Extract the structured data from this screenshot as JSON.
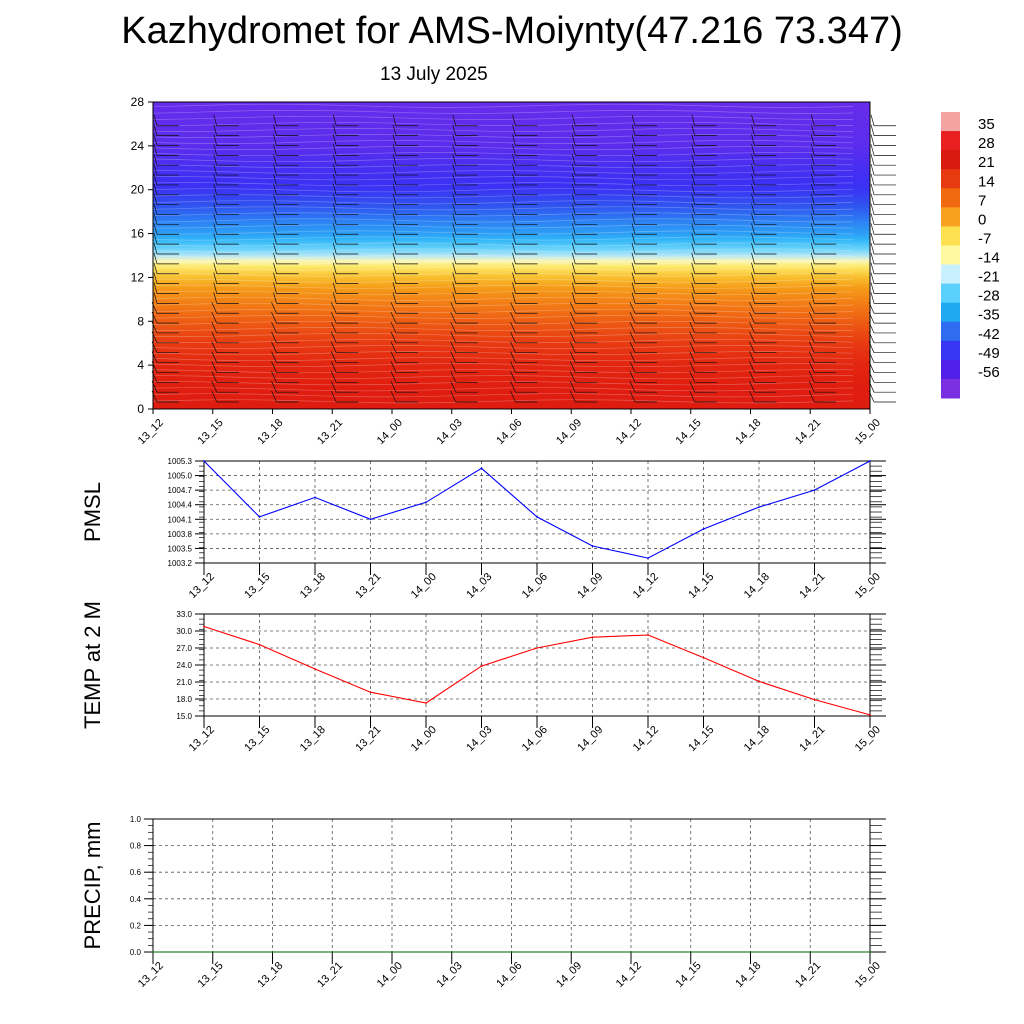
{
  "header": {
    "title": "Kazhydromet for AMS-Moiynty(47.216 73.347)",
    "date": "13 July 2025"
  },
  "colorbar": {
    "labels": [
      "35",
      "28",
      "21",
      "14",
      "7",
      "0",
      "-7",
      "-14",
      "-21",
      "-28",
      "-35",
      "-42",
      "-49",
      "-56"
    ],
    "colors": [
      "#f4a3a3",
      "#e82020",
      "#d81a10",
      "#e83a10",
      "#f06a10",
      "#f8a020",
      "#fce050",
      "#fffaa0",
      "#c8f0ff",
      "#5ad0ff",
      "#20a8f0",
      "#2f6cf0",
      "#3838f4",
      "#5020e8",
      "#7a30e0"
    ]
  },
  "chart_data": [
    {
      "type": "heatmap",
      "title": "",
      "xlabel": "",
      "ylabel": "",
      "x": [
        "13_12",
        "13_15",
        "13_18",
        "13_21",
        "14_00",
        "14_03",
        "14_06",
        "14_09",
        "14_12",
        "14_15",
        "14_18",
        "14_21",
        "15_00"
      ],
      "y_ticks": [
        0,
        4,
        8,
        12,
        16,
        20,
        24,
        28
      ],
      "ylim": [
        0,
        28
      ],
      "clim": [
        -56,
        35
      ],
      "legend": "right",
      "profile": [
        {
          "level": 0,
          "value": 30
        },
        {
          "level": 4,
          "value": 26
        },
        {
          "level": 8,
          "value": 16
        },
        {
          "level": 11,
          "value": 7
        },
        {
          "level": 13,
          "value": -7
        },
        {
          "level": 14,
          "value": -18
        },
        {
          "level": 16,
          "value": -32
        },
        {
          "level": 20,
          "value": -49
        },
        {
          "level": 24,
          "value": -55
        },
        {
          "level": 28,
          "value": -57
        }
      ],
      "wind_barbs": true
    },
    {
      "type": "line",
      "ylabel": "PMSL",
      "x": [
        "13_12",
        "13_15",
        "13_18",
        "13_21",
        "14_00",
        "14_03",
        "14_06",
        "14_09",
        "14_12",
        "14_15",
        "14_18",
        "14_21",
        "15_00"
      ],
      "y_ticks": [
        "1003.2",
        "1003.5",
        "1003.8",
        "1004.1",
        "1004.4",
        "1004.7",
        "1005.0",
        "1005.3"
      ],
      "ylim": [
        1003.2,
        1005.3
      ],
      "series": [
        {
          "color": "#0000ff",
          "values": [
            1005.3,
            1004.15,
            1004.55,
            1004.1,
            1004.45,
            1005.15,
            1004.15,
            1003.55,
            1003.3,
            1003.9,
            1004.35,
            1004.7,
            1005.3
          ]
        }
      ],
      "grid": true
    },
    {
      "type": "line",
      "ylabel": "TEMP at 2 M",
      "x": [
        "13_12",
        "13_15",
        "13_18",
        "13_21",
        "14_00",
        "14_03",
        "14_06",
        "14_09",
        "14_12",
        "14_15",
        "14_18",
        "14_21",
        "15_00"
      ],
      "y_ticks": [
        "15.0",
        "18.0",
        "21.0",
        "24.0",
        "27.0",
        "30.0",
        "33.0"
      ],
      "ylim": [
        15.0,
        33.0
      ],
      "series": [
        {
          "color": "#ff0000",
          "values": [
            30.8,
            27.6,
            23.3,
            19.2,
            17.3,
            23.8,
            27.0,
            28.9,
            29.3,
            25.3,
            21.1,
            17.9,
            15.2
          ]
        }
      ],
      "grid": true
    },
    {
      "type": "line",
      "ylabel": "PRECIP, mm",
      "x": [
        "13_12",
        "13_15",
        "13_18",
        "13_21",
        "14_00",
        "14_03",
        "14_06",
        "14_09",
        "14_12",
        "14_15",
        "14_18",
        "14_21",
        "15_00"
      ],
      "y_ticks": [
        "0.0",
        "0.2",
        "0.4",
        "0.6",
        "0.8",
        "1.0"
      ],
      "ylim": [
        0.0,
        1.0
      ],
      "series": [
        {
          "color": "#006400",
          "values": [
            0,
            0,
            0,
            0,
            0,
            0,
            0,
            0,
            0,
            0,
            0,
            0,
            0
          ]
        }
      ],
      "grid": true
    }
  ]
}
